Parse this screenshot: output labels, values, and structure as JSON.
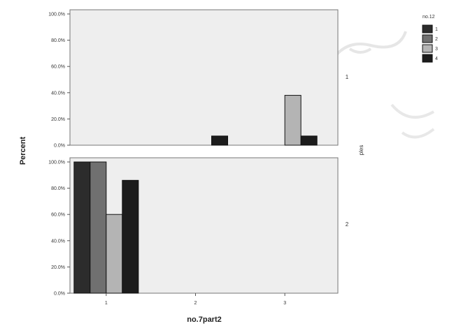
{
  "chart_data": {
    "type": "bar",
    "xlabel": "no.7part2",
    "ylabel": "Percent",
    "strip_title": "ples",
    "categories": [
      "1",
      "2",
      "3"
    ],
    "y_ticks": [
      "0.0%",
      "20.0%",
      "40.0%",
      "60.0%",
      "80.0%",
      "100.0%"
    ],
    "ylim": [
      0,
      100
    ],
    "grid": false,
    "legend_title": "no.12",
    "legend_position": "top-right",
    "series": [
      {
        "name": "1",
        "color": "#2c2c2c"
      },
      {
        "name": "2",
        "color": "#707070"
      },
      {
        "name": "3",
        "color": "#b4b4b4"
      },
      {
        "name": "4",
        "color": "#1c1c1c"
      }
    ],
    "panels": [
      {
        "label": "1",
        "values": [
          [
            0,
            0,
            0,
            0
          ],
          [
            0,
            0,
            0,
            7
          ],
          [
            0,
            0,
            38,
            7
          ]
        ]
      },
      {
        "label": "2",
        "values": [
          [
            100,
            100,
            60,
            86
          ],
          [
            0,
            0,
            0,
            0
          ],
          [
            0,
            0,
            0,
            0
          ]
        ]
      }
    ]
  }
}
